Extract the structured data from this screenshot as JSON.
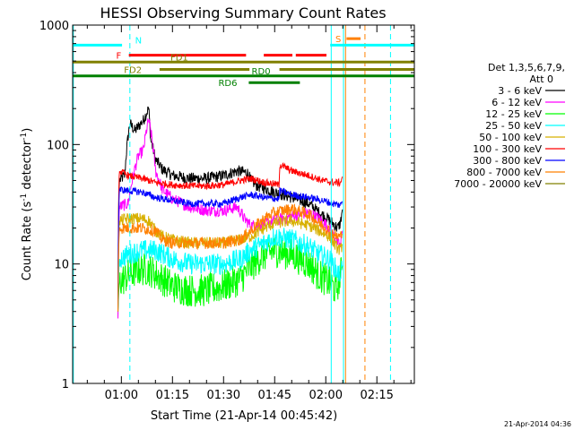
{
  "chart_data": {
    "type": "line",
    "title": "HESSI Observing Summary Count Rates",
    "xlabel": "Start Time (21-Apr-14 00:45:42)",
    "ylabel_main": "Count Rate (s",
    "ylabel_sup1": "-1",
    "ylabel_mid": " detector",
    "ylabel_sup2": "-1",
    "ylabel_end": ")",
    "y_scale": "log",
    "ylim": [
      1,
      1000
    ],
    "xlim_minutes": [
      45.7,
      146
    ],
    "x_ticks": [
      {
        "m": 60,
        "label": "01:00"
      },
      {
        "m": 75,
        "label": "01:15"
      },
      {
        "m": 90,
        "label": "01:30"
      },
      {
        "m": 105,
        "label": "01:45"
      },
      {
        "m": 120,
        "label": "02:00"
      },
      {
        "m": 135,
        "label": "02:15"
      }
    ],
    "y_ticks": [
      {
        "v": 1,
        "label": "1"
      },
      {
        "v": 10,
        "label": "10"
      },
      {
        "v": 100,
        "label": "100"
      },
      {
        "v": 1000,
        "label": "1000"
      }
    ],
    "legend": {
      "header1": "Det 1,3,5,6,7,9,",
      "header2": "Att 0",
      "position": "right",
      "entries": [
        {
          "label": "3 - 6 keV",
          "color": "#000000"
        },
        {
          "label": "6 - 12 keV",
          "color": "#ff00ff"
        },
        {
          "label": "12 - 25 keV",
          "color": "#00ff00"
        },
        {
          "label": "25 - 50 keV",
          "color": "#00ffff"
        },
        {
          "label": "50 - 100 keV",
          "color": "#d8b000"
        },
        {
          "label": "100 - 300 keV",
          "color": "#ff0000"
        },
        {
          "label": "300 - 800 keV",
          "color": "#0000ff"
        },
        {
          "label": "800 - 7000 keV",
          "color": "#ff8000"
        },
        {
          "label": "7000 - 20000 keV",
          "color": "#808000"
        }
      ]
    },
    "series": [
      {
        "name": "3 - 6 keV",
        "color": "#000000",
        "noise": 0.05,
        "t": [
          59.0,
          59.4,
          61,
          62.5,
          64,
          66.5,
          68,
          68.6,
          70,
          72,
          75,
          80,
          85,
          90,
          94,
          97,
          98,
          100,
          105,
          110,
          115,
          118,
          120.5,
          123.5,
          124.3,
          125
        ],
        "v": [
          3.5,
          50,
          55,
          150,
          130,
          160,
          200,
          110,
          75,
          62,
          55,
          52,
          52,
          55,
          60,
          58,
          50,
          45,
          40,
          36,
          32,
          27,
          24,
          20,
          22,
          30
        ]
      },
      {
        "name": "6 - 12 keV",
        "color": "#ff00ff",
        "noise": 0.05,
        "t": [
          59.0,
          59.4,
          62,
          63.5,
          65,
          66.5,
          68,
          70,
          72,
          75,
          80,
          85,
          90,
          94,
          96,
          98,
          100,
          105,
          110,
          115,
          118,
          121,
          123.5,
          124.3,
          125
        ],
        "v": [
          3.5,
          30,
          32,
          55,
          80,
          90,
          160,
          60,
          42,
          35,
          30,
          28,
          28,
          30,
          24,
          21,
          21,
          23,
          25,
          27,
          24,
          20,
          15,
          14,
          20
        ]
      },
      {
        "name": "12 - 25 keV",
        "color": "#00ff00",
        "noise": 0.14,
        "t": [
          59.0,
          59.4,
          62,
          65,
          68,
          72,
          75,
          80,
          85,
          90,
          95,
          98,
          101,
          105,
          110,
          115,
          118,
          121,
          123,
          124.3,
          125
        ],
        "v": [
          4,
          7,
          8,
          9,
          9,
          7.5,
          6.5,
          6,
          6,
          6.5,
          7.5,
          9.5,
          11.5,
          13,
          12,
          10,
          8,
          7,
          6,
          8,
          10
        ]
      },
      {
        "name": "25 - 50 keV",
        "color": "#00ffff",
        "noise": 0.09,
        "t": [
          59.0,
          59.4,
          62,
          66,
          70,
          75,
          80,
          85,
          90,
          95,
          98,
          102,
          105,
          110,
          115,
          118,
          121,
          123,
          124,
          125
        ],
        "v": [
          4,
          11,
          12,
          13,
          13,
          11,
          10,
          10,
          10,
          11,
          13,
          15,
          17,
          16,
          14,
          12,
          11,
          9,
          8,
          10
        ]
      },
      {
        "name": "50 - 100 keV",
        "color": "#d8b000",
        "noise": 0.05,
        "t": [
          59.0,
          59.4,
          62,
          66,
          68,
          70,
          72,
          75,
          80,
          85,
          90,
          95,
          98,
          102,
          105,
          110,
          115,
          118,
          121,
          123,
          124.3,
          125
        ],
        "v": [
          4,
          23,
          24,
          24,
          23,
          19,
          17,
          16,
          15,
          15,
          15,
          16,
          17,
          20,
          22,
          23,
          21,
          19,
          17,
          14,
          13,
          15
        ]
      },
      {
        "name": "100 - 300 keV",
        "color": "#ff0000",
        "noise": 0.03,
        "t": [
          59.0,
          59.4,
          62,
          66,
          70,
          75,
          80,
          85,
          90,
          95,
          98,
          102,
          106.3,
          106.5,
          110,
          115,
          119,
          122,
          124.3,
          125
        ],
        "v": [
          4,
          60,
          55,
          52,
          48,
          46,
          45,
          45,
          46,
          50,
          52,
          48,
          46,
          68,
          60,
          55,
          50,
          48,
          48,
          55
        ]
      },
      {
        "name": "300 - 800 keV",
        "color": "#0000ff",
        "noise": 0.03,
        "t": [
          59.0,
          59.4,
          62,
          66,
          70,
          75,
          80,
          85,
          90,
          95,
          98,
          102,
          106.3,
          106.5,
          110,
          115,
          119,
          122,
          124.3,
          125
        ],
        "v": [
          4,
          42,
          41,
          40,
          36,
          34,
          32,
          32,
          32,
          36,
          38,
          36,
          35,
          41,
          38,
          36,
          34,
          32,
          31,
          34
        ]
      },
      {
        "name": "800 - 7000 keV",
        "color": "#ff8000",
        "noise": 0.05,
        "t": [
          59.0,
          59.4,
          62,
          66,
          70,
          72,
          75,
          80,
          85,
          90,
          95,
          98,
          102,
          105,
          110,
          115,
          118,
          121,
          123,
          124.3,
          125
        ],
        "v": [
          4,
          20,
          20,
          20,
          19,
          16,
          15,
          15,
          15,
          15,
          16,
          19,
          24,
          27,
          29,
          26,
          22,
          19,
          17,
          17,
          18
        ]
      },
      {
        "name": "7000 - 20000 keV",
        "color": "#808000",
        "noise": 0.0,
        "t": [],
        "v": []
      }
    ],
    "vlines": [
      {
        "m": 45.9,
        "color": "#00ffff",
        "dash": false
      },
      {
        "m": 62.5,
        "color": "#00ffff",
        "dash": true
      },
      {
        "m": 121.6,
        "color": "#00ffff",
        "dash": false
      },
      {
        "m": 125.2,
        "color": "#00ffff",
        "dash": false
      },
      {
        "m": 139,
        "color": "#00ffff",
        "dash": true
      },
      {
        "m": 125.8,
        "color": "#ff8000",
        "dash": false
      },
      {
        "m": 131.5,
        "color": "#ff8000",
        "dash": true
      }
    ],
    "flag_bars": [
      {
        "label": "N",
        "color": "#00ffff",
        "value": 680,
        "segments": [
          [
            45.7,
            60.2
          ],
          [
            121.3,
            146
          ]
        ],
        "label_m": 65,
        "label_side": "above"
      },
      {
        "label": "F",
        "color": "#ff0000",
        "value": 560,
        "segments": [
          [
            62.2,
            96.6
          ],
          [
            101.8,
            110.2
          ],
          [
            111.2,
            120.2
          ]
        ],
        "label_m": 60.0,
        "label_side": "left"
      },
      {
        "label": "FD1",
        "color": "#808000",
        "value": 490,
        "segments": [
          [
            45.7,
            146
          ]
        ],
        "label_m": 77,
        "label_side": "above"
      },
      {
        "label": "FD2",
        "color": "#808000",
        "value": 425,
        "segments": [
          [
            71.2,
            97.6
          ],
          [
            106.4,
            146
          ]
        ],
        "label_m": 66,
        "label_side": "left"
      },
      {
        "label": "RD0",
        "color": "#008000",
        "value": 375,
        "segments": [
          [
            45.7,
            146
          ]
        ],
        "label_m": 101,
        "label_side": "above"
      },
      {
        "label": "RD6",
        "color": "#008000",
        "value": 330,
        "segments": [
          [
            97.4,
            112.4
          ]
        ],
        "label_m": 94,
        "label_side": "left"
      },
      {
        "label": "S",
        "color": "#ff8000",
        "value": 770,
        "segments": [
          [
            126.1,
            130.2
          ]
        ],
        "label_m": 124.5,
        "label_side": "left"
      }
    ]
  },
  "footer_timestamp": "21-Apr-2014 04:36"
}
